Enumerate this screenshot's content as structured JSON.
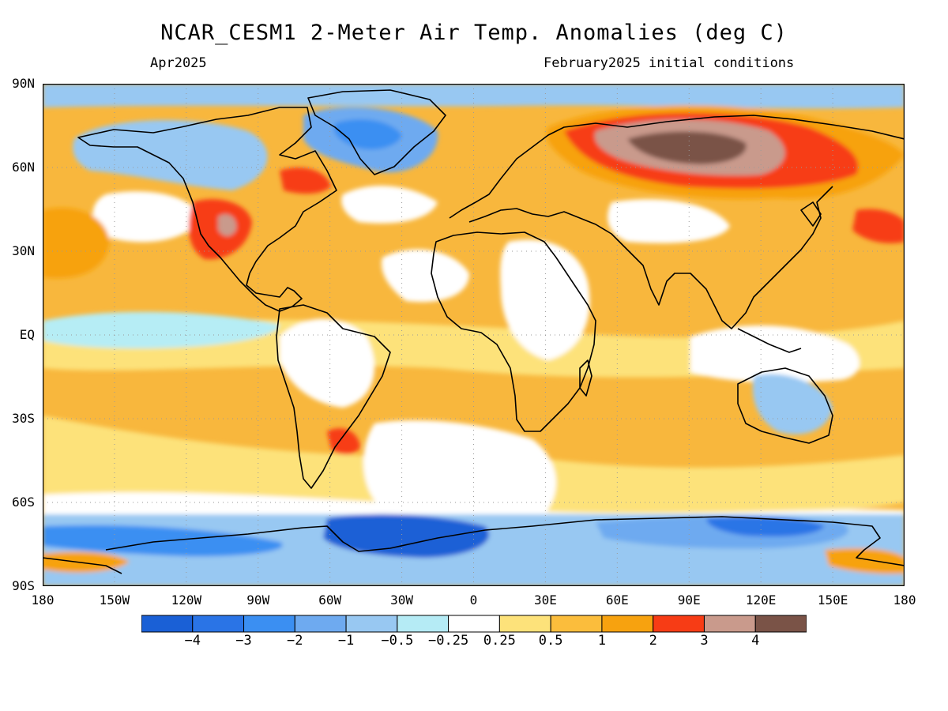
{
  "title": "NCAR_CESM1 2-Meter Air Temp. Anomalies (deg C)",
  "subtitle_left": "Apr2025",
  "subtitle_right": "February2025 initial conditions",
  "map": {
    "projection": "equirectangular",
    "lat_labels": [
      "90N",
      "60N",
      "30N",
      "EQ",
      "30S",
      "60S",
      "90S"
    ],
    "lon_labels": [
      "180",
      "150W",
      "120W",
      "90W",
      "60W",
      "30W",
      "0",
      "30E",
      "60E",
      "90E",
      "120E",
      "150E",
      "180"
    ],
    "grid": "dotted",
    "ocean_background_color": "#f8b73d",
    "features": [
      {
        "region": "Siberia",
        "level": "3 to 4+",
        "color": "#7a5347"
      },
      {
        "region": "Northern Eurasia",
        "level": "2 to 3",
        "color": "#fa3c19"
      },
      {
        "region": "Southwestern USA",
        "level": "2 to 3",
        "color": "#fa3c19"
      },
      {
        "region": "Greenland",
        "level": "-1 to -2",
        "color": "#69a6f5"
      },
      {
        "region": "Antarctica / Southern Ocean",
        "level": "-2 to -4",
        "color": "#2d6fe0"
      },
      {
        "region": "Northern Canada",
        "level": "-0.5 to -1",
        "color": "#93c4f5"
      },
      {
        "region": "Equatorial Pacific",
        "level": "-0.25 to -0.5",
        "color": "#b6edf5"
      },
      {
        "region": "Central Africa",
        "level": "-0.25 to 0.25",
        "color": "#ffffff"
      }
    ]
  },
  "colorbar": {
    "colors": [
      "#1a60d6",
      "#2a74e6",
      "#3b8ff2",
      "#6eaaf0",
      "#98c8f2",
      "#b5ebf5",
      "#ffffff",
      "#fde27a",
      "#fbbd3c",
      "#f7a20f",
      "#f73c15",
      "#c99a8c",
      "#7a5347"
    ],
    "labels": [
      "−4",
      "−3",
      "−2",
      "−1",
      "−0.5",
      "−0.25",
      "0.25",
      "0.5",
      "1",
      "2",
      "3",
      "4"
    ]
  }
}
